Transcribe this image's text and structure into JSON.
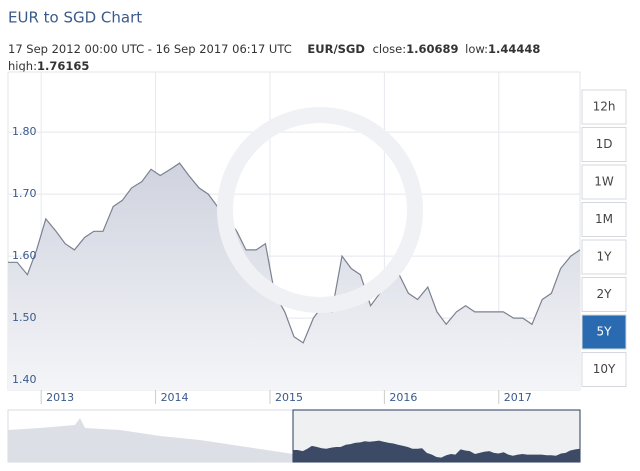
{
  "chart_data": {
    "type": "area",
    "title": "EUR to SGD Chart",
    "range_text": "17 Sep 2012 00:00 UTC - 16 Sep 2017 06:17 UTC",
    "pair": "EUR/SGD",
    "close_label": "close:",
    "close": 1.60689,
    "low_label": "low:",
    "low": 1.44448,
    "high_label": "high:",
    "high": 1.76165,
    "x": [
      2012.71,
      2012.79,
      2012.88,
      2012.96,
      2013.04,
      2013.13,
      2013.21,
      2013.29,
      2013.38,
      2013.46,
      2013.54,
      2013.63,
      2013.71,
      2013.79,
      2013.88,
      2013.96,
      2014.04,
      2014.13,
      2014.21,
      2014.29,
      2014.38,
      2014.46,
      2014.54,
      2014.63,
      2014.71,
      2014.79,
      2014.88,
      2014.96,
      2015.04,
      2015.13,
      2015.21,
      2015.29,
      2015.38,
      2015.46,
      2015.54,
      2015.63,
      2015.71,
      2015.79,
      2015.88,
      2015.96,
      2016.04,
      2016.13,
      2016.21,
      2016.29,
      2016.38,
      2016.46,
      2016.54,
      2016.63,
      2016.71,
      2016.79,
      2016.88,
      2016.96,
      2017.04,
      2017.13,
      2017.21,
      2017.29,
      2017.38,
      2017.46,
      2017.54,
      2017.63,
      2017.71
    ],
    "series": [
      {
        "name": "EUR/SGD",
        "color": "#7b8190",
        "values": [
          1.59,
          1.59,
          1.57,
          1.61,
          1.66,
          1.64,
          1.62,
          1.61,
          1.63,
          1.64,
          1.64,
          1.68,
          1.69,
          1.71,
          1.72,
          1.74,
          1.73,
          1.74,
          1.75,
          1.73,
          1.71,
          1.7,
          1.68,
          1.66,
          1.64,
          1.61,
          1.61,
          1.62,
          1.54,
          1.51,
          1.47,
          1.46,
          1.5,
          1.52,
          1.51,
          1.6,
          1.58,
          1.57,
          1.52,
          1.54,
          1.56,
          1.57,
          1.54,
          1.53,
          1.55,
          1.51,
          1.49,
          1.51,
          1.52,
          1.51,
          1.51,
          1.51,
          1.51,
          1.5,
          1.5,
          1.49,
          1.53,
          1.54,
          1.58,
          1.6,
          1.61
        ]
      }
    ],
    "xlim": [
      2012.71,
      2017.71
    ],
    "xticks": [
      2013,
      2014,
      2015,
      2016,
      2017
    ],
    "ylim": [
      1.384,
      1.897
    ],
    "yticks": [
      {
        "value": 1.4,
        "label": "1.40"
      },
      {
        "value": 1.5,
        "label": "1.50"
      },
      {
        "value": 1.6,
        "label": "1.60"
      },
      {
        "value": 1.7,
        "label": "1.70"
      },
      {
        "value": 1.8,
        "label": "1.80"
      }
    ],
    "grid": true,
    "range_buttons": [
      "12h",
      "1D",
      "1W",
      "1M",
      "1Y",
      "2Y",
      "5Y",
      "10Y"
    ],
    "selected_button": "5Y"
  }
}
